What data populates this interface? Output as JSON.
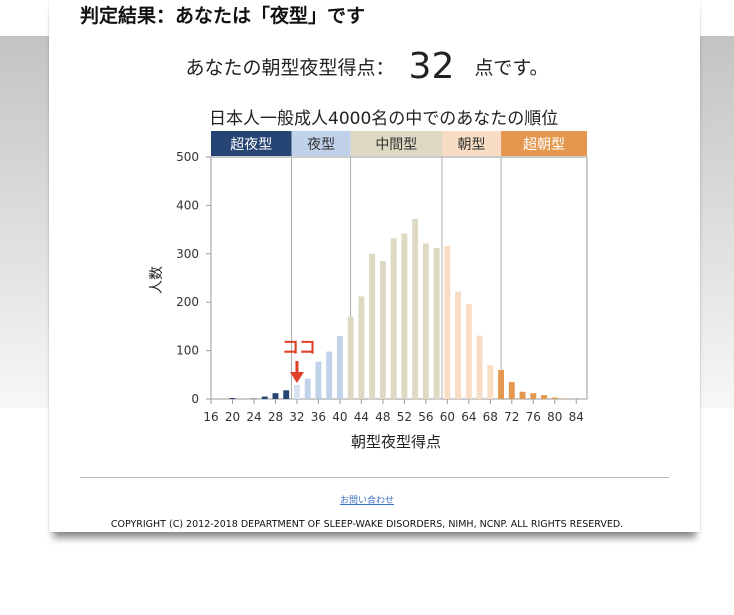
{
  "header": {
    "result_title": "判定結果：あなたは「夜型」です"
  },
  "score": {
    "prefix": "あなたの朝型夜型得点：",
    "value": "32",
    "suffix": "点です。"
  },
  "chart_data": {
    "type": "bar",
    "title": "日本人一般成人4000名の中でのあなたの順位",
    "xlabel": "朝型夜型得点",
    "ylabel": "人数",
    "ylim": [
      0,
      500
    ],
    "yticks": [
      0,
      100,
      200,
      300,
      400,
      500
    ],
    "xlim": [
      16,
      86
    ],
    "xticks": [
      16,
      20,
      24,
      28,
      32,
      36,
      40,
      44,
      48,
      52,
      56,
      60,
      64,
      68,
      72,
      76,
      80,
      84
    ],
    "grid": false,
    "categories": [
      18,
      20,
      22,
      24,
      26,
      28,
      30,
      32,
      34,
      36,
      38,
      40,
      42,
      44,
      46,
      48,
      50,
      52,
      54,
      56,
      58,
      60,
      62,
      64,
      66,
      68,
      70,
      72,
      74,
      76,
      78,
      80,
      82,
      84
    ],
    "values": [
      0,
      2,
      0,
      1,
      5,
      12,
      18,
      29,
      42,
      77,
      98,
      130,
      170,
      212,
      300,
      285,
      332,
      342,
      372,
      321,
      312,
      316,
      222,
      196,
      131,
      70,
      60,
      35,
      15,
      12,
      8,
      3,
      1,
      0
    ],
    "segments": [
      {
        "label": "超夜型",
        "from": 16,
        "to": 31,
        "color": "#274574",
        "text_color": "#ffffff"
      },
      {
        "label": "夜型",
        "from": 31,
        "to": 42,
        "color": "#c0d2ea",
        "text_color": "#333333"
      },
      {
        "label": "中間型",
        "from": 42,
        "to": 59,
        "color": "#ddd9c2",
        "text_color": "#333333"
      },
      {
        "label": "朝型",
        "from": 59,
        "to": 70,
        "color": "#f8dcc3",
        "text_color": "#333333"
      },
      {
        "label": "超朝型",
        "from": 70,
        "to": 86,
        "color": "#e4974e",
        "text_color": "#ffffff"
      }
    ],
    "marker": {
      "label": "ココ",
      "x": 32,
      "color": "#e0402a"
    }
  },
  "footer": {
    "contact_link": "お問い合わせ",
    "copyright": "COPYRIGHT (C) 2012-2018 DEPARTMENT OF SLEEP-WAKE DISORDERS, NIMH, NCNP. ALL RIGHTS RESERVED."
  }
}
